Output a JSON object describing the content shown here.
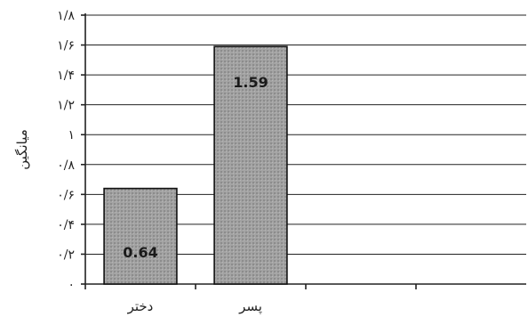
{
  "chart_data": {
    "type": "bar",
    "categories": [
      "دختر",
      "پسر"
    ],
    "values": [
      0.64,
      1.59
    ],
    "value_labels": [
      "0.64",
      "1.59"
    ],
    "ylabel": "میانگین",
    "ylim": [
      0,
      1.8
    ],
    "yticks": [
      {
        "value": 0,
        "label": "۰"
      },
      {
        "value": 0.2,
        "label": "۰/۲"
      },
      {
        "value": 0.4,
        "label": "۰/۴"
      },
      {
        "value": 0.6,
        "label": "۰/۶"
      },
      {
        "value": 0.8,
        "label": "۰/۸"
      },
      {
        "value": 1.0,
        "label": "۱"
      },
      {
        "value": 1.2,
        "label": "۱/۲"
      },
      {
        "value": 1.4,
        "label": "۱/۴"
      },
      {
        "value": 1.6,
        "label": "۱/۶"
      },
      {
        "value": 1.8,
        "label": "۱/۸"
      }
    ],
    "slots": 4,
    "grid": true,
    "bar_color": "#9a9a9a"
  }
}
